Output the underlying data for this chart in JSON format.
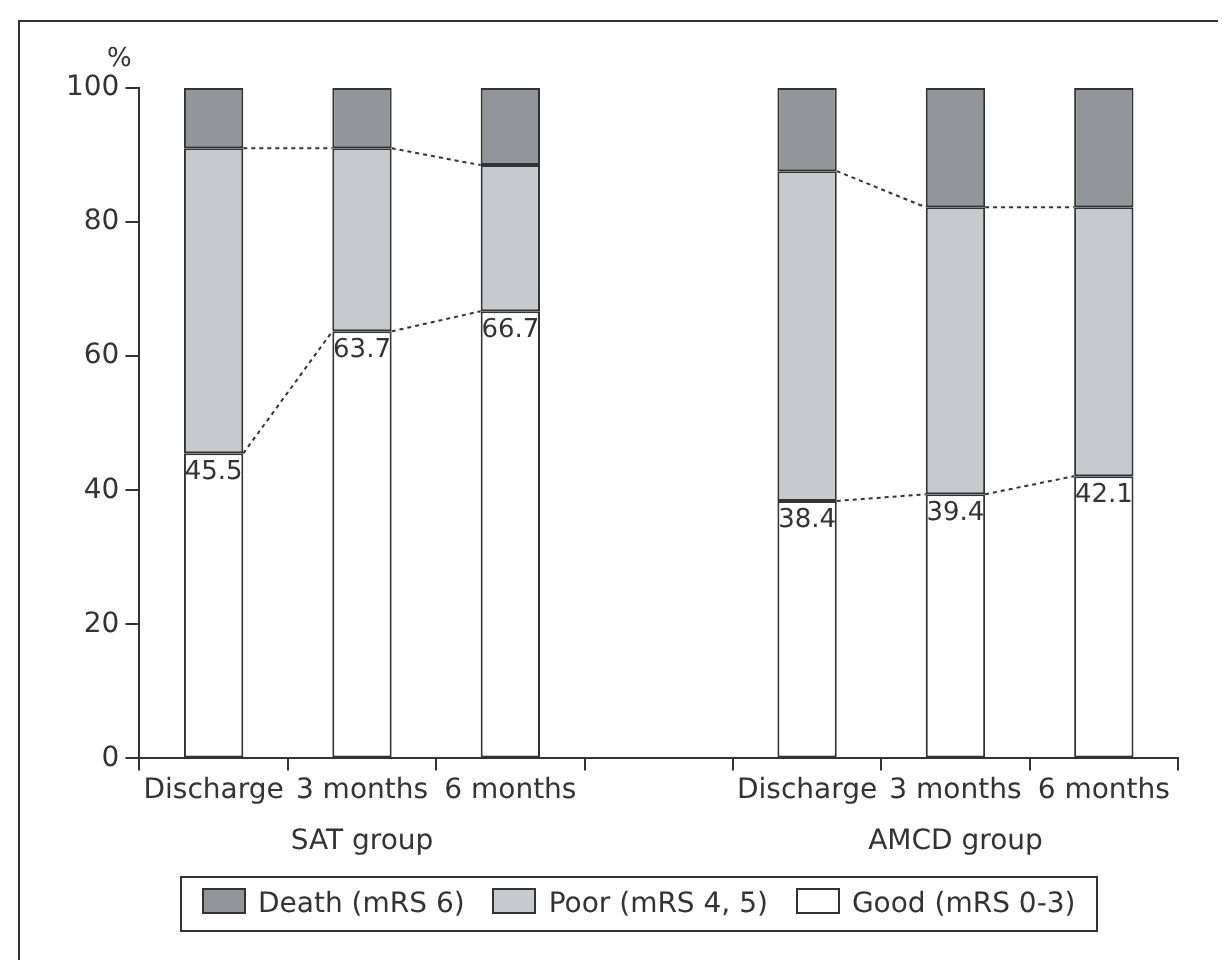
{
  "chart_data": {
    "type": "bar",
    "stacked": true,
    "ylabel": "%",
    "categories": [
      "Discharge",
      "3 months",
      "6 months",
      null,
      "Discharge",
      "3 months",
      "6 months"
    ],
    "series": [
      {
        "name": "Good (mRS 0-3)",
        "color": "#ffffff",
        "values": [
          45.5,
          63.7,
          66.7,
          null,
          38.4,
          39.4,
          42.1
        ],
        "value_labels": [
          "45.5",
          "63.7",
          "66.7",
          null,
          "38.4",
          "39.4",
          "42.1"
        ]
      },
      {
        "name": "Poor (mRS 4, 5)",
        "color": "#c8c9cb",
        "values": [
          45.5,
          27.3,
          21.8,
          null,
          49.2,
          42.8,
          40.1
        ]
      },
      {
        "name": "Death (mRS 6)",
        "color": "#939598",
        "values": [
          9,
          9,
          11.5,
          null,
          12.4,
          17.8,
          17.8
        ]
      }
    ],
    "annotations": [
      "SAT group",
      "AMCD group"
    ],
    "ylim": [
      0,
      100
    ],
    "yticks": [
      0,
      20,
      40,
      60,
      80,
      100
    ],
    "grid": false,
    "legend": "bottom"
  }
}
